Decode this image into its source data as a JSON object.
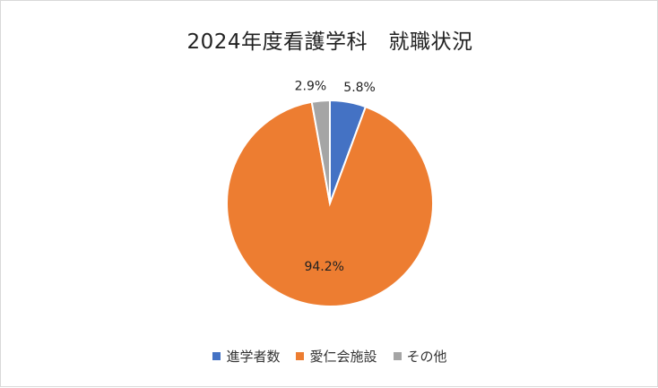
{
  "chart_data": {
    "type": "pie",
    "title": "2024年度看護学科　就職状況",
    "categories": [
      "進学者数",
      "愛仁会施設",
      "その他"
    ],
    "values": [
      5.8,
      94.2,
      2.9
    ],
    "data_labels": [
      "5.8%",
      "94.2%",
      "2.9%"
    ],
    "colors": [
      "#4472C4",
      "#ED7D31",
      "#A5A5A5"
    ],
    "legend_position": "bottom"
  }
}
